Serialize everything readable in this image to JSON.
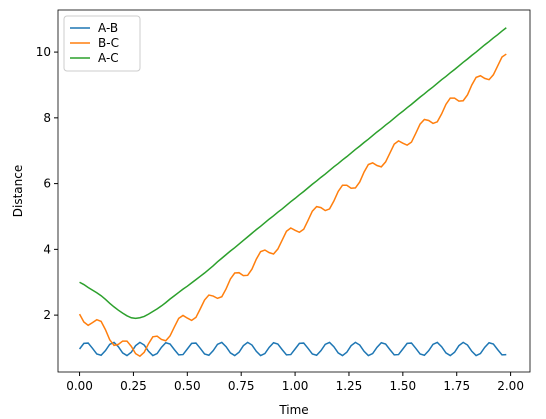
{
  "chart_data": {
    "type": "line",
    "xlabel": "Time",
    "ylabel": "Distance",
    "x": [
      0,
      0.02,
      0.04,
      0.06,
      0.08,
      0.1,
      0.12,
      0.14,
      0.16,
      0.18,
      0.2,
      0.22,
      0.24,
      0.26,
      0.28,
      0.3,
      0.32,
      0.34,
      0.36,
      0.38,
      0.4,
      0.42,
      0.44,
      0.46,
      0.48,
      0.5,
      0.52,
      0.54,
      0.56,
      0.58,
      0.6,
      0.62,
      0.64,
      0.66,
      0.68,
      0.7,
      0.72,
      0.74,
      0.76,
      0.78,
      0.8,
      0.82,
      0.84,
      0.86,
      0.88,
      0.9,
      0.92,
      0.94,
      0.96,
      0.98,
      1,
      1.02,
      1.04,
      1.06,
      1.08,
      1.1,
      1.12,
      1.14,
      1.16,
      1.18,
      1.2,
      1.22,
      1.24,
      1.26,
      1.28,
      1.3,
      1.32,
      1.34,
      1.36,
      1.38,
      1.4,
      1.42,
      1.44,
      1.46,
      1.48,
      1.5,
      1.52,
      1.54,
      1.56,
      1.58,
      1.6,
      1.62,
      1.64,
      1.66,
      1.68,
      1.7,
      1.72,
      1.74,
      1.76,
      1.78,
      1.8,
      1.82,
      1.84,
      1.86,
      1.88,
      1.9,
      1.92,
      1.94,
      1.96,
      1.98
    ],
    "series": [
      {
        "name": "A-B",
        "color": "#1f77b4",
        "values": [
          0.97,
          1.14,
          1.15,
          0.99,
          0.82,
          0.78,
          0.92,
          1.11,
          1.17,
          1.04,
          0.85,
          0.77,
          0.87,
          1.07,
          1.17,
          1.09,
          0.9,
          0.77,
          0.83,
          1.02,
          1.16,
          1.12,
          0.95,
          0.79,
          0.8,
          0.97,
          1.14,
          1.15,
          0.99,
          0.82,
          0.78,
          0.92,
          1.11,
          1.17,
          1.04,
          0.85,
          0.77,
          0.87,
          1.07,
          1.17,
          1.09,
          0.9,
          0.77,
          0.83,
          1.02,
          1.16,
          1.12,
          0.95,
          0.79,
          0.8,
          0.97,
          1.14,
          1.15,
          0.99,
          0.82,
          0.78,
          0.92,
          1.11,
          1.17,
          1.04,
          0.85,
          0.77,
          0.87,
          1.07,
          1.17,
          1.09,
          0.9,
          0.77,
          0.83,
          1.02,
          1.16,
          1.12,
          0.95,
          0.79,
          0.8,
          0.97,
          1.14,
          1.15,
          0.99,
          0.82,
          0.78,
          0.92,
          1.11,
          1.17,
          1.04,
          0.85,
          0.77,
          0.87,
          1.07,
          1.17,
          1.09,
          0.9,
          0.77,
          0.83,
          1.02,
          1.16,
          1.12,
          0.95,
          0.79,
          0.8
        ]
      },
      {
        "name": "B-C",
        "color": "#ff7f0e",
        "values": [
          2.03,
          1.79,
          1.69,
          1.77,
          1.86,
          1.81,
          1.56,
          1.25,
          1.08,
          1.11,
          1.21,
          1.21,
          1.05,
          0.83,
          0.75,
          0.87,
          1.13,
          1.34,
          1.36,
          1.26,
          1.22,
          1.37,
          1.64,
          1.9,
          1.99,
          1.91,
          1.84,
          1.93,
          2.19,
          2.46,
          2.61,
          2.58,
          2.51,
          2.56,
          2.8,
          3.1,
          3.28,
          3.29,
          3.2,
          3.21,
          3.4,
          3.7,
          3.93,
          3.98,
          3.9,
          3.86,
          4.01,
          4.28,
          4.55,
          4.65,
          4.58,
          4.52,
          4.61,
          4.88,
          5.16,
          5.3,
          5.27,
          5.18,
          5.23,
          5.47,
          5.76,
          5.95,
          5.95,
          5.86,
          5.87,
          6.05,
          6.35,
          6.58,
          6.63,
          6.55,
          6.51,
          6.66,
          6.93,
          7.2,
          7.3,
          7.23,
          7.17,
          7.26,
          7.53,
          7.81,
          7.95,
          7.92,
          7.83,
          7.88,
          8.12,
          8.41,
          8.6,
          8.6,
          8.51,
          8.52,
          8.7,
          9.0,
          9.23,
          9.28,
          9.2,
          9.16,
          9.31,
          9.58,
          9.85,
          9.94
        ]
      },
      {
        "name": "A-C",
        "color": "#2ca02c",
        "values": [
          3.0,
          2.93,
          2.84,
          2.76,
          2.68,
          2.59,
          2.48,
          2.36,
          2.25,
          2.15,
          2.06,
          1.98,
          1.92,
          1.9,
          1.92,
          1.96,
          2.03,
          2.11,
          2.19,
          2.28,
          2.38,
          2.49,
          2.59,
          2.69,
          2.79,
          2.88,
          2.98,
          3.08,
          3.18,
          3.28,
          3.39,
          3.5,
          3.62,
          3.73,
          3.84,
          3.95,
          4.05,
          4.16,
          4.27,
          4.38,
          4.49,
          4.6,
          4.7,
          4.81,
          4.92,
          5.02,
          5.13,
          5.23,
          5.34,
          5.45,
          5.55,
          5.66,
          5.76,
          5.87,
          5.98,
          6.08,
          6.19,
          6.29,
          6.4,
          6.51,
          6.61,
          6.72,
          6.82,
          6.93,
          7.04,
          7.14,
          7.25,
          7.35,
          7.46,
          7.57,
          7.67,
          7.78,
          7.88,
          7.99,
          8.1,
          8.2,
          8.31,
          8.41,
          8.52,
          8.63,
          8.73,
          8.84,
          8.94,
          9.05,
          9.16,
          9.26,
          9.37,
          9.47,
          9.58,
          9.69,
          9.79,
          9.9,
          10.0,
          10.11,
          10.22,
          10.32,
          10.43,
          10.53,
          10.64,
          10.74
        ]
      }
    ],
    "xlim": [
      -0.1,
      2.09
    ],
    "xticks": [
      {
        "value": 0,
        "label": "0.00"
      },
      {
        "value": 0.25,
        "label": "0.25"
      },
      {
        "value": 0.5,
        "label": "0.50"
      },
      {
        "value": 0.75,
        "label": "0.75"
      },
      {
        "value": 1,
        "label": "1.00"
      },
      {
        "value": 1.25,
        "label": "1.25"
      },
      {
        "value": 1.5,
        "label": "1.50"
      },
      {
        "value": 1.75,
        "label": "1.75"
      },
      {
        "value": 2,
        "label": "2.00"
      }
    ],
    "ylim": [
      0.27,
      11.28
    ],
    "yticks": [
      2,
      4,
      6,
      8,
      10
    ],
    "legend": "upper left"
  }
}
